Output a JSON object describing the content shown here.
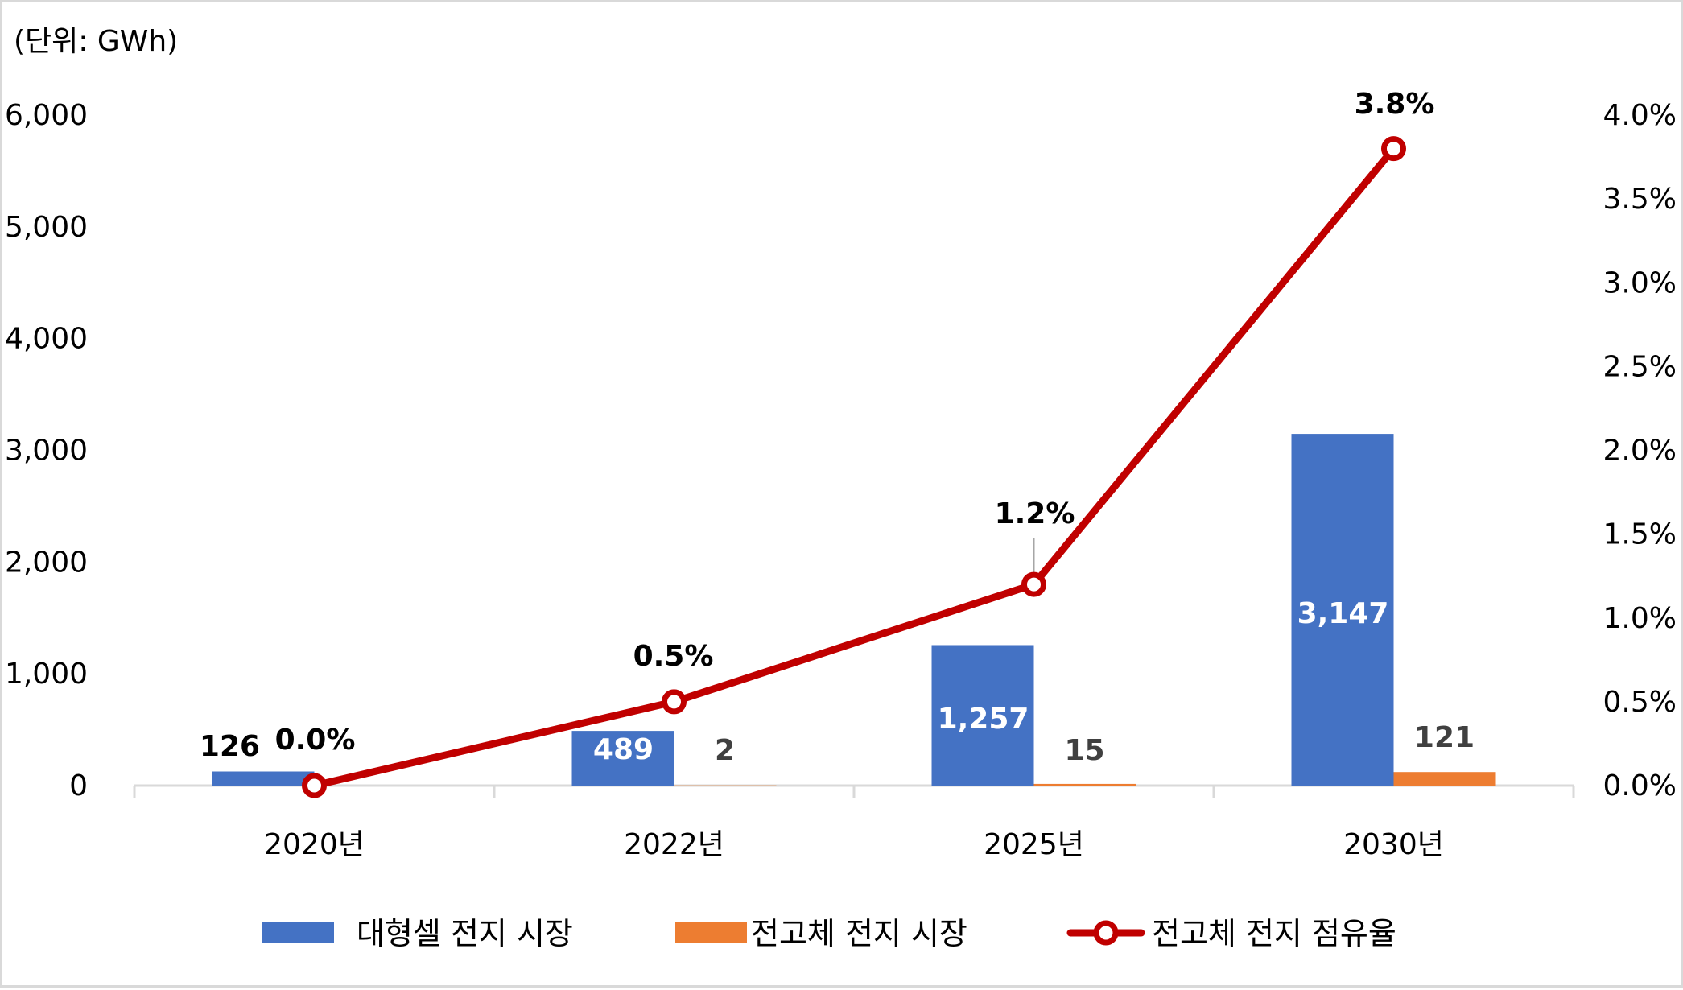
{
  "chart_data": {
    "type": "bar+line",
    "title": "",
    "unit_label": "(단위: GWh)",
    "categories": [
      "2020년",
      "2022년",
      "2025년",
      "2030년"
    ],
    "series": [
      {
        "name": "대형셀 전지 시장",
        "type": "bar",
        "axis": "left",
        "color": "#4472C4",
        "values": [
          126,
          489,
          1257,
          3147
        ],
        "labels": [
          "126",
          "489",
          "1,257",
          "3,147"
        ]
      },
      {
        "name": "전고체 전지 시장",
        "type": "bar",
        "axis": "left",
        "color": "#ED7D31",
        "values": [
          0,
          2,
          15,
          121
        ],
        "labels": [
          "",
          "2",
          "15",
          "121"
        ]
      },
      {
        "name": "전고체 전지 점유율",
        "type": "line",
        "axis": "right",
        "color": "#C00000",
        "marker": "hollow-circle",
        "values": [
          0.0,
          0.5,
          1.2,
          3.8
        ],
        "labels": [
          "0.0%",
          "0.5%",
          "1.2%",
          "3.8%"
        ]
      }
    ],
    "left_axis": {
      "label": "(단위: GWh)",
      "ylim": [
        0,
        6000
      ],
      "ticks": [
        "0",
        "1,000",
        "2,000",
        "3,000",
        "4,000",
        "5,000",
        "6,000"
      ]
    },
    "right_axis": {
      "ylim": [
        0,
        4.0
      ],
      "ticks": [
        "0.0%",
        "0.5%",
        "1.0%",
        "1.5%",
        "2.0%",
        "2.5%",
        "3.0%",
        "3.5%",
        "4.0%"
      ]
    },
    "xlabel": "",
    "ylabel": "GWh",
    "grid": false,
    "legend_position": "bottom"
  },
  "colors": {
    "bar_large_cell": "#4472C4",
    "bar_solid_state": "#ED7D31",
    "line_share": "#C00000",
    "axis": "#D9D9D9",
    "label_dark": "#404040"
  },
  "legend": {
    "items": [
      "대형셀 전지 시장",
      "전고체 전지 시장",
      "전고체 전지 점유율"
    ]
  }
}
